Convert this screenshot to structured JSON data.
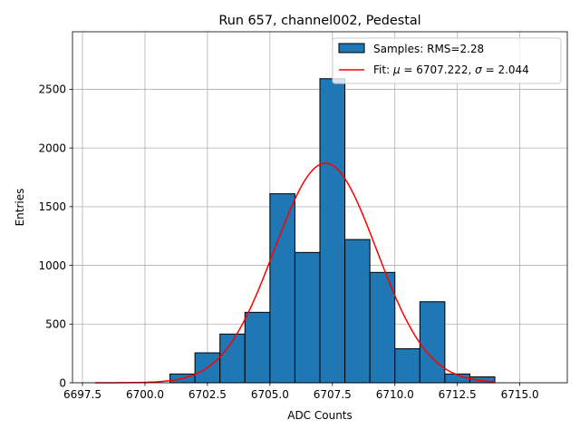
{
  "chart_data": {
    "type": "bar",
    "title": "Run 657, channel002, Pedestal",
    "xlabel": "ADC Counts",
    "ylabel": "Entries",
    "xlim": [
      6697.1,
      6716.9
    ],
    "ylim": [
      0,
      2990
    ],
    "grid": true,
    "legend_position": "top-right",
    "x_ticks": [
      {
        "value": 6697.5,
        "label": "6697.5"
      },
      {
        "value": 6700.0,
        "label": "6700.0"
      },
      {
        "value": 6702.5,
        "label": "6702.5"
      },
      {
        "value": 6705.0,
        "label": "6705.0"
      },
      {
        "value": 6707.5,
        "label": "6707.5"
      },
      {
        "value": 6710.0,
        "label": "6710.0"
      },
      {
        "value": 6712.5,
        "label": "6712.5"
      },
      {
        "value": 6715.0,
        "label": "6715.0"
      }
    ],
    "y_ticks": [
      {
        "value": 0,
        "label": "0"
      },
      {
        "value": 500,
        "label": "500"
      },
      {
        "value": 1000,
        "label": "1000"
      },
      {
        "value": 1500,
        "label": "1500"
      },
      {
        "value": 2000,
        "label": "2000"
      },
      {
        "value": 2500,
        "label": "2500"
      }
    ],
    "histogram": {
      "name": "Samples: RMS=2.28",
      "color": "#1f77b4",
      "edge_color": "#000000",
      "bins": [
        {
          "x0": 6701.0,
          "x1": 6702.0,
          "value": 75
        },
        {
          "x0": 6702.0,
          "x1": 6703.0,
          "value": 255
        },
        {
          "x0": 6703.0,
          "x1": 6704.0,
          "value": 415
        },
        {
          "x0": 6704.0,
          "x1": 6705.0,
          "value": 600
        },
        {
          "x0": 6705.0,
          "x1": 6706.0,
          "value": 1610
        },
        {
          "x0": 6706.0,
          "x1": 6707.0,
          "value": 1110
        },
        {
          "x0": 6707.0,
          "x1": 6708.0,
          "value": 2590
        },
        {
          "x0": 6708.0,
          "x1": 6709.0,
          "value": 1220
        },
        {
          "x0": 6709.0,
          "x1": 6710.0,
          "value": 940
        },
        {
          "x0": 6710.0,
          "x1": 6711.0,
          "value": 290
        },
        {
          "x0": 6711.0,
          "x1": 6712.0,
          "value": 690
        },
        {
          "x0": 6712.0,
          "x1": 6713.0,
          "value": 75
        },
        {
          "x0": 6713.0,
          "x1": 6714.0,
          "value": 50
        }
      ]
    },
    "fit": {
      "name_prefix": "Fit: ",
      "mu_symbol": "μ",
      "mu_value": " = 6707.222, ",
      "sigma_symbol": "σ",
      "sigma_value": " = 2.044",
      "color": "#ff0000",
      "mu": 6707.222,
      "sigma": 2.044,
      "peak": 1870,
      "x_range": [
        6698.0,
        6714.0
      ]
    }
  }
}
